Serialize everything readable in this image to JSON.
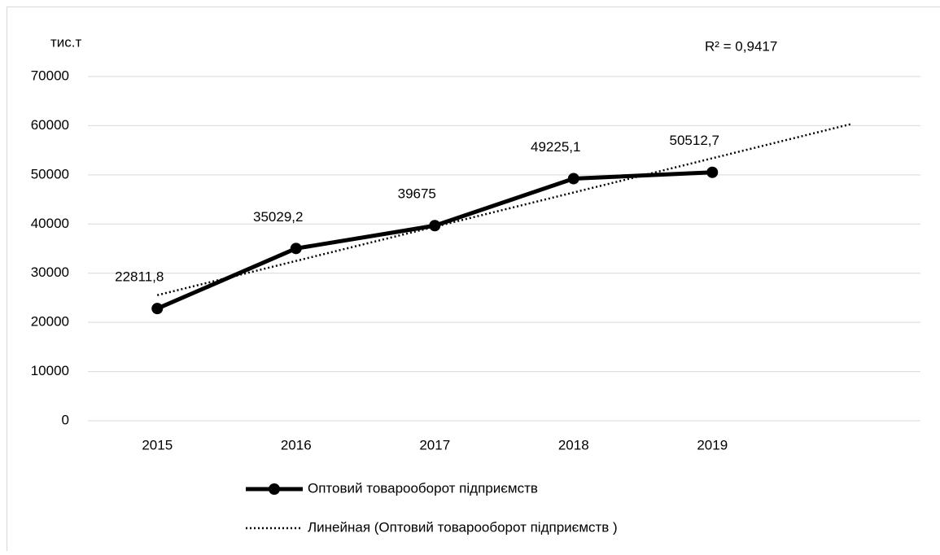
{
  "chart_data": {
    "type": "line",
    "y_label": "тис.т",
    "annotation": "R² = 0,9417",
    "categories": [
      "2015",
      "2016",
      "2017",
      "2018",
      "2019",
      null
    ],
    "series": [
      {
        "name": "Оптовий товарооборот підприємств",
        "color": "#000000",
        "style": "solid",
        "marker": true,
        "values": [
          22811.8,
          35029.2,
          39675,
          49225.1,
          50512.7,
          null
        ],
        "value_labels": [
          "22811,8",
          "35029,2",
          "39675",
          "49225,1",
          "50512,7",
          null
        ]
      },
      {
        "name": "Линейная (Оптовий товарооборот підприємств )",
        "color": "#000000",
        "style": "dotted",
        "marker": false,
        "values": [
          25531,
          32491,
          39451,
          46411,
          53370,
          60330
        ]
      }
    ],
    "ylim": [
      0,
      70000
    ],
    "yticks": [
      0,
      10000,
      20000,
      30000,
      40000,
      50000,
      60000,
      70000
    ],
    "grid": true,
    "legend": "bottom"
  }
}
